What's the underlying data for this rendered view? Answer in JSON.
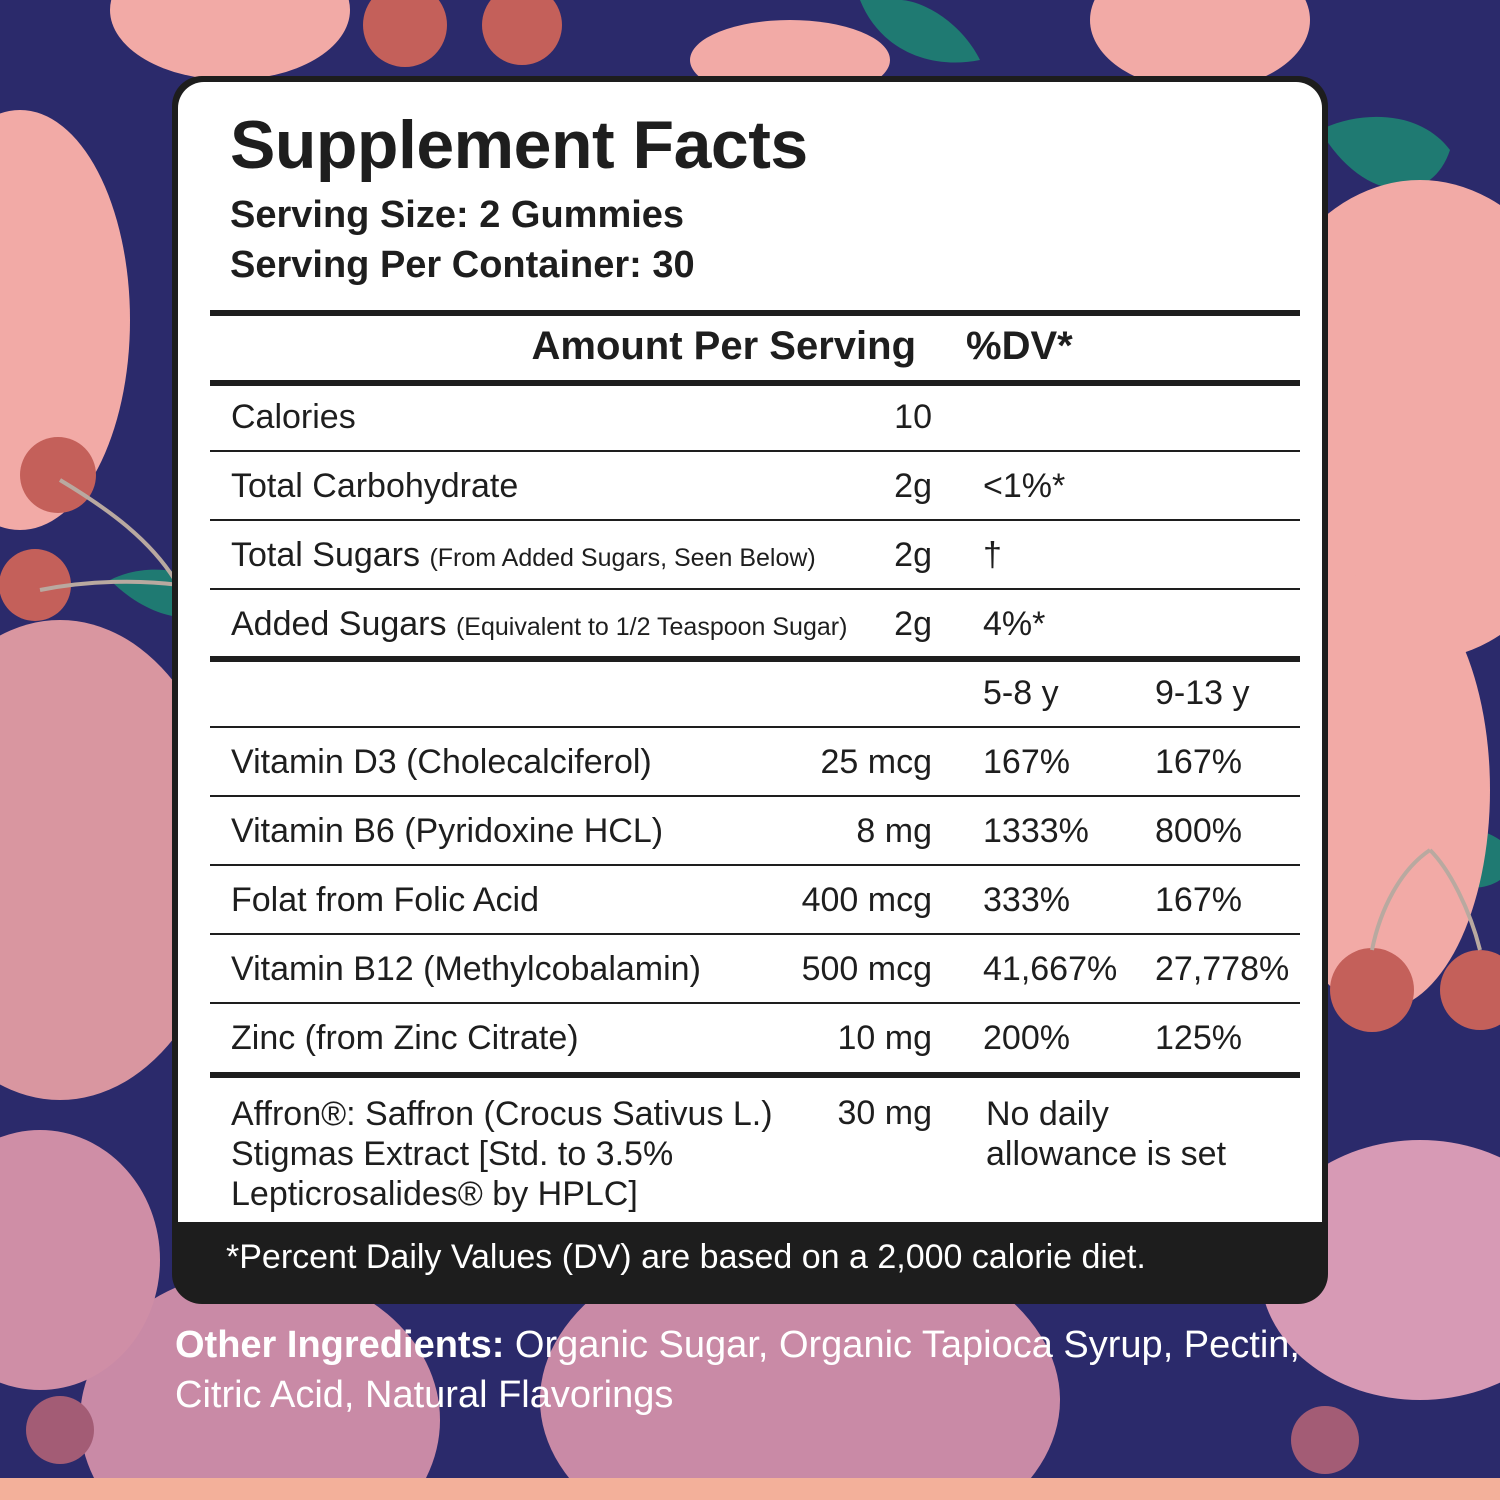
{
  "panel": {
    "title": "Supplement Facts",
    "serving_size": "Serving Size: 2 Gummies",
    "servings_per_container": "Serving Per Container: 30",
    "header": {
      "amount": "Amount Per Serving",
      "dv": "%DV*"
    },
    "rows": [
      {
        "name": "Calories",
        "amount": "10",
        "dv": ""
      },
      {
        "name": "Total Carbohydrate",
        "amount": "2g",
        "dv": "<1%*"
      },
      {
        "name": "Total Sugars",
        "note": "(From Added Sugars, Seen Below)",
        "amount": "2g",
        "dv": "†"
      },
      {
        "name": "Added Sugars",
        "note": "(Equivalent to 1/2 Teaspoon Sugar)",
        "amount": "2g",
        "dv": "4%*"
      }
    ],
    "age_headers": [
      "5-8 y",
      "9-13 y"
    ],
    "vitamins": [
      {
        "name": "Vitamin D3 (Cholecalciferol)",
        "amount": "25 mcg",
        "dv1": "167%",
        "dv2": "167%"
      },
      {
        "name": "Vitamin B6 (Pyridoxine HCL)",
        "amount": "8 mg",
        "dv1": "1333%",
        "dv2": "800%"
      },
      {
        "name": "Folat from Folic Acid",
        "amount": "400 mcg",
        "dv1": "333%",
        "dv2": "167%"
      },
      {
        "name": "Vitamin B12 (Methylcobalamin)",
        "amount": "500 mcg",
        "dv1": "41,667%",
        "dv2": "27,778%"
      },
      {
        "name": "Zinc (from Zinc Citrate)",
        "amount": "10 mg",
        "dv1": "200%",
        "dv2": "125%"
      }
    ],
    "affron": {
      "lines": [
        "Affron®: Saffron (Crocus Sativus L.)",
        "Stigmas Extract [Std. to 3.5%",
        "Lepticrosalides® by HPLC]"
      ],
      "amount": "30 mg",
      "dv_lines": [
        "No daily",
        "allowance is set"
      ]
    },
    "footnote": "*Percent Daily Values (DV) are based on a 2,000 calorie diet."
  },
  "other_ingredients": {
    "label": "Other Ingredients:",
    "text": " Organic Sugar, Organic Tapioca Syrup, Pectin, Citric Acid, Natural Flavorings"
  },
  "colors": {
    "background": "#2b2a6b",
    "peach": "#f2aaa6",
    "cherry": "#c4605a",
    "leaf": "#1f7a72",
    "panel_border": "#1d1d1d"
  }
}
